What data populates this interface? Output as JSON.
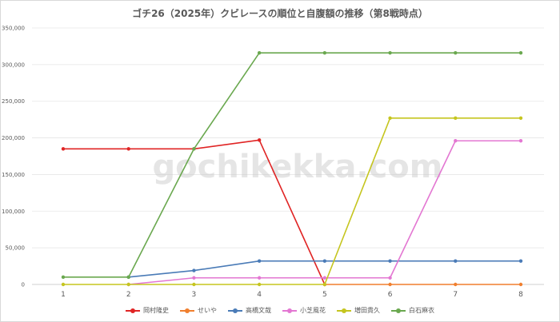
{
  "chart_data": {
    "type": "line",
    "title": "ゴチ26（2025年）クビレースの順位と自腹額の推移（第8戦時点）",
    "xlabel": "",
    "ylabel": "",
    "categories": [
      "1",
      "2",
      "3",
      "4",
      "5",
      "6",
      "7",
      "8"
    ],
    "ylim": [
      0,
      350000
    ],
    "yticks": [
      "0",
      "50,000",
      "100,000",
      "150,000",
      "200,000",
      "250,000",
      "300,000",
      "350,000"
    ],
    "grid": true,
    "legend_position": "bottom",
    "watermark": "gochikekka.com",
    "series": [
      {
        "name": "岡村隆史",
        "color": "#e02424",
        "values": [
          185000,
          185000,
          185000,
          197000,
          0,
          null,
          null,
          null
        ]
      },
      {
        "name": "せいや",
        "color": "#f07f2e",
        "values": [
          null,
          null,
          null,
          null,
          0,
          0,
          0,
          0
        ]
      },
      {
        "name": "高橋文哉",
        "color": "#4a7bb7",
        "values": [
          null,
          10000,
          19000,
          32000,
          32000,
          32000,
          32000,
          32000
        ]
      },
      {
        "name": "小芝風花",
        "color": "#e377d2",
        "values": [
          null,
          0,
          9000,
          9000,
          9000,
          9000,
          196000,
          196000
        ]
      },
      {
        "name": "増田貴久",
        "color": "#c5c51f",
        "values": [
          0,
          0,
          0,
          0,
          0,
          227000,
          227000,
          227000
        ]
      },
      {
        "name": "白石麻衣",
        "color": "#6aa84f",
        "values": [
          10000,
          10000,
          185000,
          316000,
          316000,
          316000,
          316000,
          316000
        ]
      }
    ]
  }
}
